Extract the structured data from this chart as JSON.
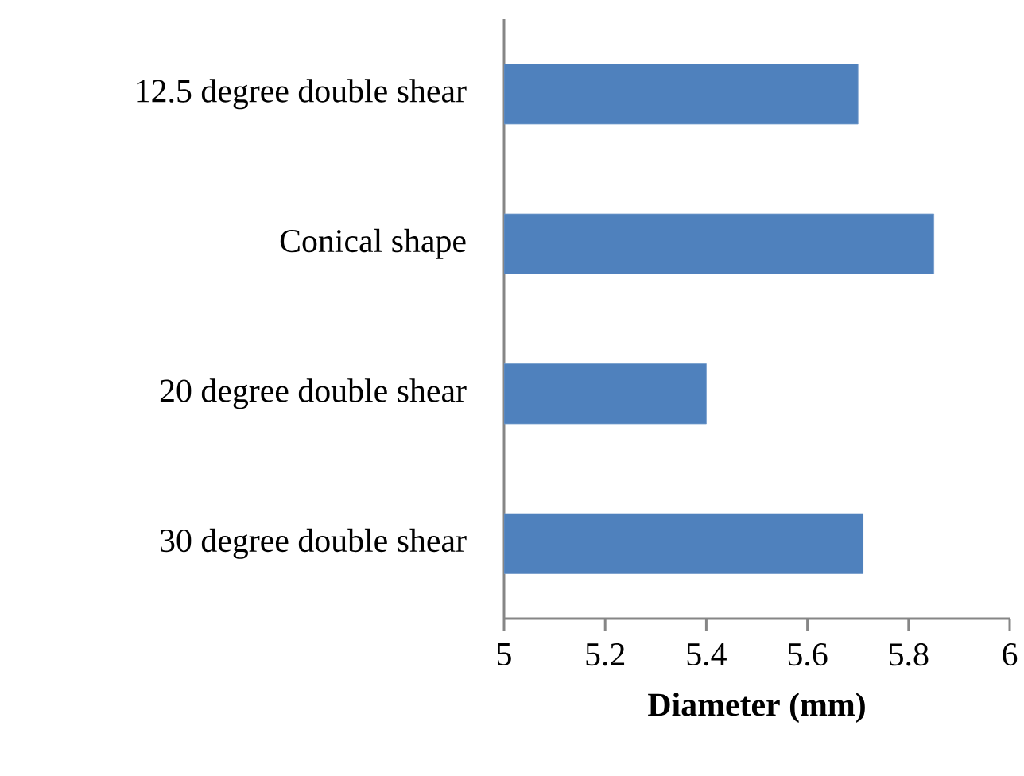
{
  "chart_data": {
    "type": "bar",
    "orientation": "horizontal",
    "xlabel": "Diameter (mm)",
    "categories": [
      "12.5 degree double shear",
      "Conical shape",
      "20 degree double shear",
      "30 degree double shear"
    ],
    "values": [
      5.7,
      5.85,
      5.4,
      5.71
    ],
    "color": "#4f81bd",
    "xlim": [
      5,
      6
    ],
    "xticks": [
      5,
      5.2,
      5.4,
      5.6,
      5.8,
      6
    ]
  }
}
